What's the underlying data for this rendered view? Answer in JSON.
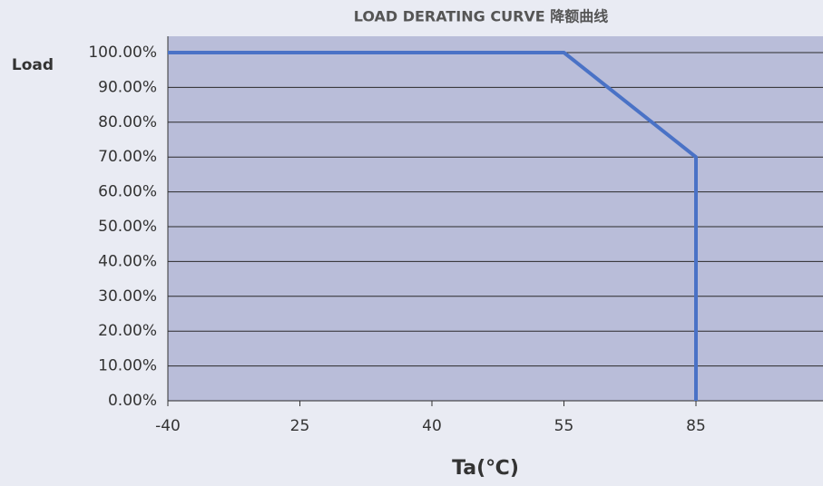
{
  "chart_data": {
    "type": "line",
    "title": "LOAD DERATING CURVE 降额曲线",
    "y_label": "Load",
    "x_label": "Ta(℃)",
    "series": [
      {
        "color": "#4a72c6",
        "x": [
          -40,
          55,
          85,
          85
        ],
        "values": [
          100,
          100,
          70,
          0
        ]
      }
    ],
    "xlim": [
      -40,
      85
    ],
    "xticks": [
      -40,
      25,
      40,
      55,
      85
    ],
    "ylim": [
      0,
      100
    ],
    "yticks": [
      {
        "value": 0,
        "label": "0.00%"
      },
      {
        "value": 10,
        "label": "10.00%"
      },
      {
        "value": 20,
        "label": "20.00%"
      },
      {
        "value": 30,
        "label": "30.00%"
      },
      {
        "value": 40,
        "label": "40.00%"
      },
      {
        "value": 50,
        "label": "50.00%"
      },
      {
        "value": 60,
        "label": "60.00%"
      },
      {
        "value": 70,
        "label": "70.00%"
      },
      {
        "value": 80,
        "label": "80.00%"
      },
      {
        "value": 90,
        "label": "90.00%"
      },
      {
        "value": 100,
        "label": "100.00%"
      }
    ],
    "grid": true
  }
}
